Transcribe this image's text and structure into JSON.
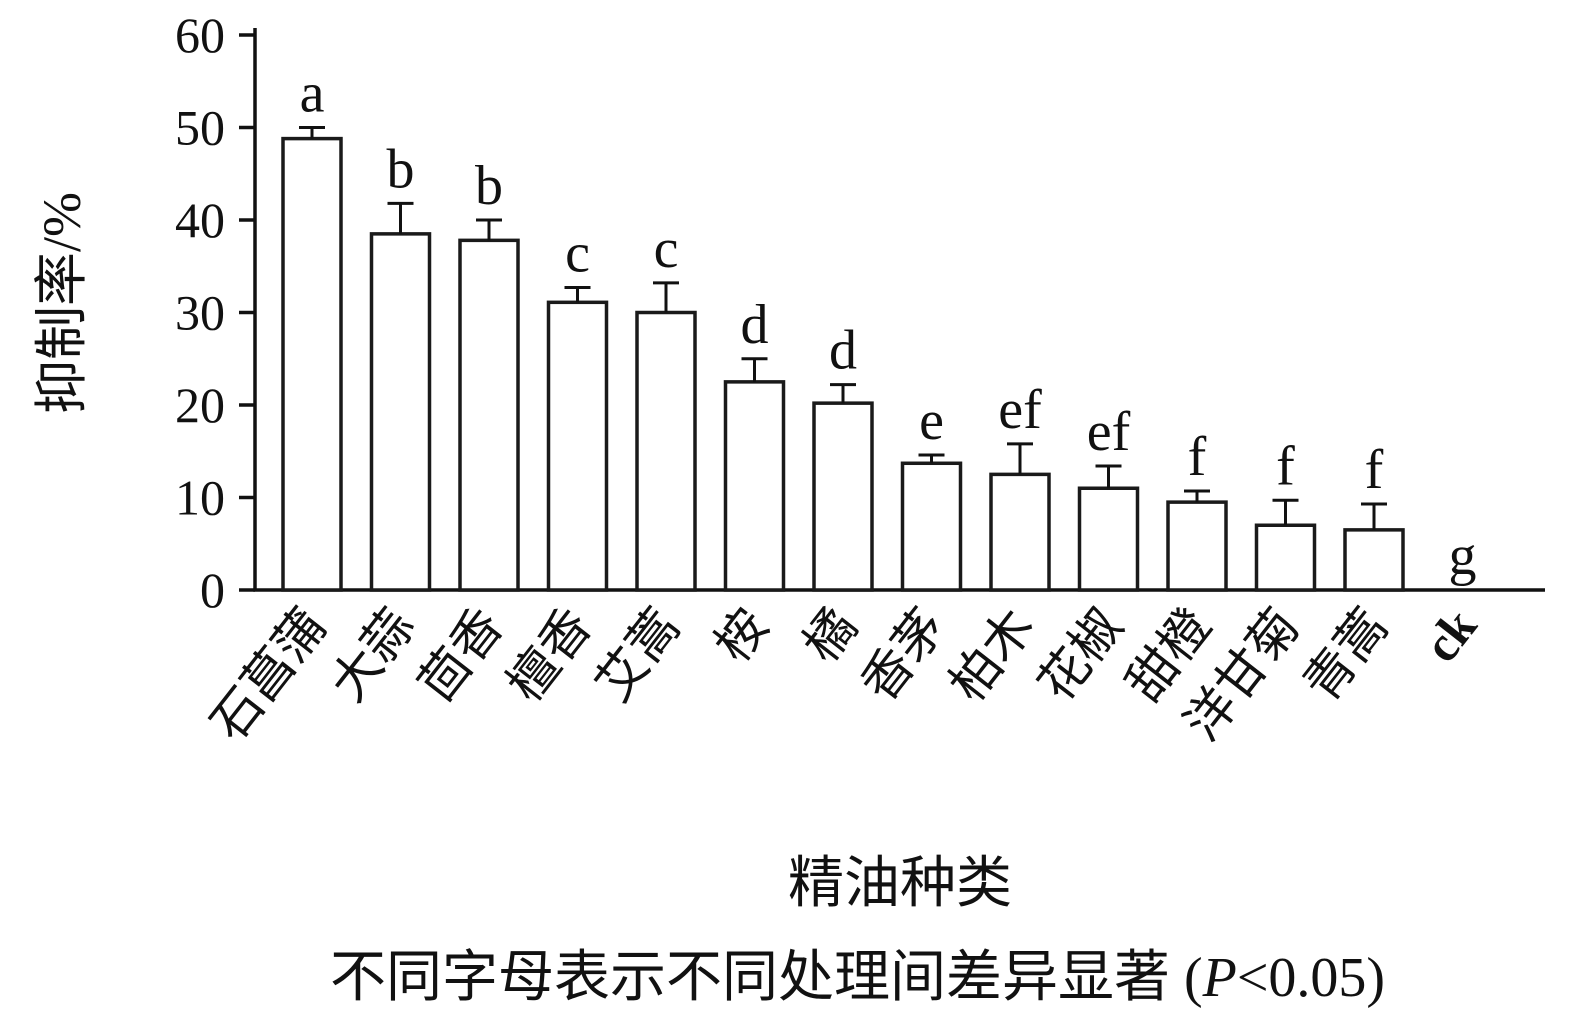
{
  "chart_data": {
    "type": "bar",
    "title": "",
    "ylabel": "抑制率/%",
    "xlabel": "精油种类",
    "ylim": [
      0,
      60
    ],
    "ytick_step": 10,
    "grid": false,
    "legend": false,
    "bar_fill": "#ffffff",
    "bar_stroke": "#1a1a1a",
    "categories": [
      "石菖蒲",
      "大蒜",
      "茴香",
      "檀香",
      "艾蒿",
      "桉",
      "橘",
      "香茅",
      "柏木",
      "花椒",
      "甜橙",
      "洋甘菊",
      "青蒿",
      "ck"
    ],
    "values": [
      48.8,
      38.5,
      37.8,
      31.1,
      30.0,
      22.5,
      20.2,
      13.7,
      12.5,
      11.0,
      9.5,
      7.0,
      6.5,
      0
    ],
    "errors": [
      1.2,
      3.3,
      2.2,
      1.6,
      3.2,
      2.5,
      2.0,
      0.9,
      3.3,
      2.4,
      1.2,
      2.7,
      2.8,
      0
    ],
    "letters": [
      "a",
      "b",
      "b",
      "c",
      "c",
      "d",
      "d",
      "e",
      "ef",
      "ef",
      "f",
      "f",
      "f",
      "g"
    ]
  },
  "caption": {
    "prefix": "不同字母表示不同处理间差异显著 (",
    "italic": "P",
    "suffix": "<0.05)"
  }
}
